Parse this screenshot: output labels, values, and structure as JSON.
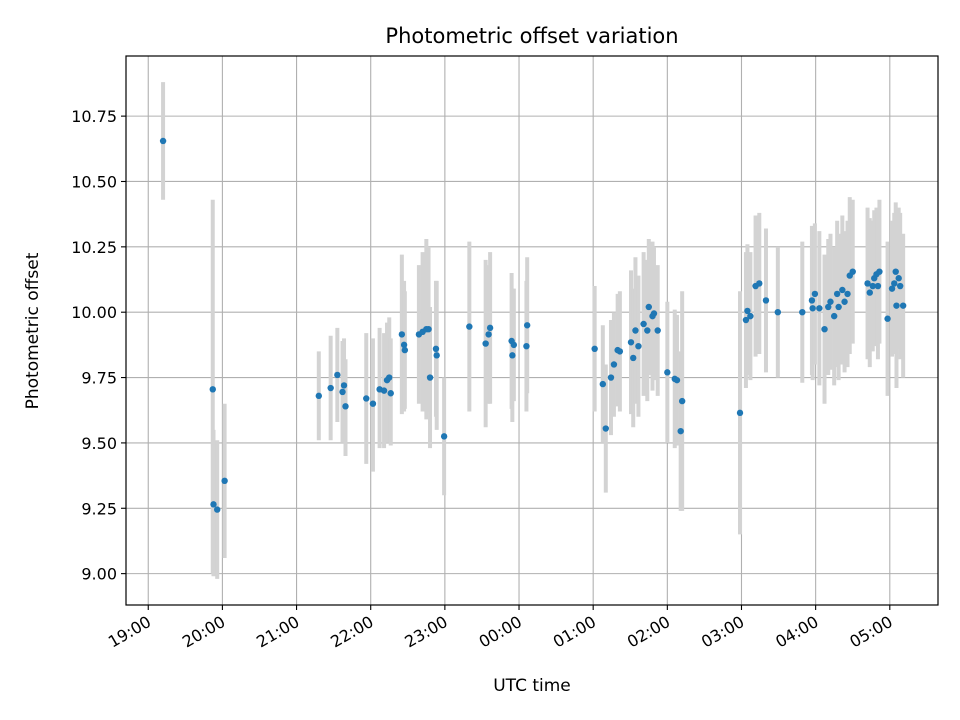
{
  "chart_data": {
    "type": "scatter",
    "title": "Photometric offset variation",
    "xlabel": "UTC time",
    "ylabel": "Photometric offset",
    "x_unit": "UTC hours (19 = 19:00, 29 = 05:00 next day)",
    "xlim": [
      18.7,
      29.65
    ],
    "ylim": [
      8.88,
      10.98
    ],
    "grid": true,
    "x_ticks": [
      {
        "value": 19,
        "label": "19:00"
      },
      {
        "value": 20,
        "label": "20:00"
      },
      {
        "value": 21,
        "label": "21:00"
      },
      {
        "value": 22,
        "label": "22:00"
      },
      {
        "value": 23,
        "label": "23:00"
      },
      {
        "value": 24,
        "label": "00:00"
      },
      {
        "value": 25,
        "label": "01:00"
      },
      {
        "value": 26,
        "label": "02:00"
      },
      {
        "value": 27,
        "label": "03:00"
      },
      {
        "value": 28,
        "label": "04:00"
      },
      {
        "value": 29,
        "label": "05:00"
      }
    ],
    "y_ticks": [
      {
        "value": 9.0,
        "label": "9.00"
      },
      {
        "value": 9.25,
        "label": "9.25"
      },
      {
        "value": 9.5,
        "label": "9.50"
      },
      {
        "value": 9.75,
        "label": "9.75"
      },
      {
        "value": 10.0,
        "label": "10.00"
      },
      {
        "value": 10.25,
        "label": "10.25"
      },
      {
        "value": 10.5,
        "label": "10.50"
      },
      {
        "value": 10.75,
        "label": "10.75"
      }
    ],
    "marker_color": "#1f77b4",
    "errorbar_color": "#d3d3d3",
    "points": [
      {
        "x": 19.2,
        "y": 10.655,
        "lo": 10.43,
        "hi": 10.88
      },
      {
        "x": 19.87,
        "y": 9.705,
        "lo": 9.0,
        "hi": 10.43
      },
      {
        "x": 19.88,
        "y": 9.265,
        "lo": 8.99,
        "hi": 9.55
      },
      {
        "x": 19.93,
        "y": 9.245,
        "lo": 8.98,
        "hi": 9.51
      },
      {
        "x": 20.03,
        "y": 9.355,
        "lo": 9.06,
        "hi": 9.65
      },
      {
        "x": 21.3,
        "y": 9.68,
        "lo": 9.51,
        "hi": 9.85
      },
      {
        "x": 21.46,
        "y": 9.71,
        "lo": 9.51,
        "hi": 9.91
      },
      {
        "x": 21.55,
        "y": 9.76,
        "lo": 9.58,
        "hi": 9.94
      },
      {
        "x": 21.62,
        "y": 9.695,
        "lo": 9.5,
        "hi": 9.89
      },
      {
        "x": 21.64,
        "y": 9.72,
        "lo": 9.54,
        "hi": 9.9
      },
      {
        "x": 21.66,
        "y": 9.64,
        "lo": 9.45,
        "hi": 9.82
      },
      {
        "x": 21.94,
        "y": 9.67,
        "lo": 9.42,
        "hi": 9.92
      },
      {
        "x": 22.03,
        "y": 9.65,
        "lo": 9.39,
        "hi": 9.9
      },
      {
        "x": 22.12,
        "y": 9.705,
        "lo": 9.48,
        "hi": 9.94
      },
      {
        "x": 22.18,
        "y": 9.7,
        "lo": 9.48,
        "hi": 9.92
      },
      {
        "x": 22.22,
        "y": 9.74,
        "lo": 9.5,
        "hi": 9.96
      },
      {
        "x": 22.25,
        "y": 9.75,
        "lo": 9.52,
        "hi": 9.98
      },
      {
        "x": 22.27,
        "y": 9.69,
        "lo": 9.49,
        "hi": 9.9
      },
      {
        "x": 22.42,
        "y": 9.915,
        "lo": 9.61,
        "hi": 10.22
      },
      {
        "x": 22.45,
        "y": 9.875,
        "lo": 9.62,
        "hi": 10.12
      },
      {
        "x": 22.46,
        "y": 9.855,
        "lo": 9.63,
        "hi": 10.08
      },
      {
        "x": 22.65,
        "y": 9.915,
        "lo": 9.65,
        "hi": 10.18
      },
      {
        "x": 22.7,
        "y": 9.925,
        "lo": 9.62,
        "hi": 10.23
      },
      {
        "x": 22.75,
        "y": 9.935,
        "lo": 9.59,
        "hi": 10.28
      },
      {
        "x": 22.78,
        "y": 9.935,
        "lo": 9.62,
        "hi": 10.25
      },
      {
        "x": 22.8,
        "y": 9.75,
        "lo": 9.48,
        "hi": 10.02
      },
      {
        "x": 22.88,
        "y": 9.86,
        "lo": 9.6,
        "hi": 10.12
      },
      {
        "x": 22.89,
        "y": 9.835,
        "lo": 9.55,
        "hi": 10.12
      },
      {
        "x": 22.99,
        "y": 9.525,
        "lo": 9.3,
        "hi": 9.75
      },
      {
        "x": 23.33,
        "y": 9.945,
        "lo": 9.62,
        "hi": 10.27
      },
      {
        "x": 23.55,
        "y": 9.88,
        "lo": 9.56,
        "hi": 10.2
      },
      {
        "x": 23.59,
        "y": 9.915,
        "lo": 9.65,
        "hi": 10.18
      },
      {
        "x": 23.61,
        "y": 9.94,
        "lo": 9.65,
        "hi": 10.23
      },
      {
        "x": 23.9,
        "y": 9.89,
        "lo": 9.63,
        "hi": 10.15
      },
      {
        "x": 23.91,
        "y": 9.835,
        "lo": 9.58,
        "hi": 10.09
      },
      {
        "x": 23.93,
        "y": 9.875,
        "lo": 9.66,
        "hi": 10.09
      },
      {
        "x": 24.1,
        "y": 9.87,
        "lo": 9.62,
        "hi": 10.12
      },
      {
        "x": 24.11,
        "y": 9.95,
        "lo": 9.69,
        "hi": 10.21
      },
      {
        "x": 25.02,
        "y": 9.86,
        "lo": 9.62,
        "hi": 10.1
      },
      {
        "x": 25.13,
        "y": 9.725,
        "lo": 9.5,
        "hi": 9.95
      },
      {
        "x": 25.17,
        "y": 9.555,
        "lo": 9.31,
        "hi": 9.8
      },
      {
        "x": 25.24,
        "y": 9.75,
        "lo": 9.53,
        "hi": 9.97
      },
      {
        "x": 25.28,
        "y": 9.8,
        "lo": 9.6,
        "hi": 10.0
      },
      {
        "x": 25.33,
        "y": 9.855,
        "lo": 9.64,
        "hi": 10.07
      },
      {
        "x": 25.36,
        "y": 9.85,
        "lo": 9.62,
        "hi": 10.08
      },
      {
        "x": 25.51,
        "y": 9.885,
        "lo": 9.61,
        "hi": 10.16
      },
      {
        "x": 25.54,
        "y": 9.825,
        "lo": 9.56,
        "hi": 10.09
      },
      {
        "x": 25.57,
        "y": 9.93,
        "lo": 9.65,
        "hi": 10.21
      },
      {
        "x": 25.61,
        "y": 9.87,
        "lo": 9.6,
        "hi": 10.14
      },
      {
        "x": 25.68,
        "y": 9.955,
        "lo": 9.68,
        "hi": 10.23
      },
      {
        "x": 25.73,
        "y": 9.93,
        "lo": 9.66,
        "hi": 10.2
      },
      {
        "x": 25.75,
        "y": 10.02,
        "lo": 9.76,
        "hi": 10.28
      },
      {
        "x": 25.8,
        "y": 9.985,
        "lo": 9.7,
        "hi": 10.27
      },
      {
        "x": 25.82,
        "y": 9.995,
        "lo": 9.74,
        "hi": 10.25
      },
      {
        "x": 25.87,
        "y": 9.93,
        "lo": 9.68,
        "hi": 10.18
      },
      {
        "x": 26.0,
        "y": 9.77,
        "lo": 9.5,
        "hi": 10.04
      },
      {
        "x": 26.1,
        "y": 9.745,
        "lo": 9.48,
        "hi": 10.01
      },
      {
        "x": 26.13,
        "y": 9.74,
        "lo": 9.49,
        "hi": 9.99
      },
      {
        "x": 26.18,
        "y": 9.545,
        "lo": 9.24,
        "hi": 9.85
      },
      {
        "x": 26.2,
        "y": 9.66,
        "lo": 9.24,
        "hi": 10.08
      },
      {
        "x": 26.98,
        "y": 9.615,
        "lo": 9.15,
        "hi": 10.08
      },
      {
        "x": 27.06,
        "y": 9.97,
        "lo": 9.71,
        "hi": 10.23
      },
      {
        "x": 27.08,
        "y": 10.005,
        "lo": 9.76,
        "hi": 10.26
      },
      {
        "x": 27.12,
        "y": 9.985,
        "lo": 9.74,
        "hi": 10.23
      },
      {
        "x": 27.19,
        "y": 10.1,
        "lo": 9.83,
        "hi": 10.37
      },
      {
        "x": 27.24,
        "y": 10.11,
        "lo": 9.84,
        "hi": 10.38
      },
      {
        "x": 27.33,
        "y": 10.045,
        "lo": 9.77,
        "hi": 10.32
      },
      {
        "x": 27.49,
        "y": 10.0,
        "lo": 9.75,
        "hi": 10.25
      },
      {
        "x": 27.82,
        "y": 10.0,
        "lo": 9.73,
        "hi": 10.27
      },
      {
        "x": 27.95,
        "y": 10.045,
        "lo": 9.76,
        "hi": 10.33
      },
      {
        "x": 27.96,
        "y": 10.015,
        "lo": 9.74,
        "hi": 10.29
      },
      {
        "x": 27.99,
        "y": 10.07,
        "lo": 9.8,
        "hi": 10.34
      },
      {
        "x": 28.05,
        "y": 10.015,
        "lo": 9.72,
        "hi": 10.31
      },
      {
        "x": 28.12,
        "y": 9.935,
        "lo": 9.65,
        "hi": 10.22
      },
      {
        "x": 28.17,
        "y": 10.02,
        "lo": 9.76,
        "hi": 10.28
      },
      {
        "x": 28.2,
        "y": 10.04,
        "lo": 9.78,
        "hi": 10.3
      },
      {
        "x": 28.25,
        "y": 9.985,
        "lo": 9.72,
        "hi": 10.25
      },
      {
        "x": 28.29,
        "y": 10.07,
        "lo": 9.79,
        "hi": 10.35
      },
      {
        "x": 28.31,
        "y": 10.02,
        "lo": 9.74,
        "hi": 10.3
      },
      {
        "x": 28.36,
        "y": 10.085,
        "lo": 9.8,
        "hi": 10.37
      },
      {
        "x": 28.39,
        "y": 10.04,
        "lo": 9.77,
        "hi": 10.31
      },
      {
        "x": 28.43,
        "y": 10.07,
        "lo": 9.79,
        "hi": 10.35
      },
      {
        "x": 28.46,
        "y": 10.14,
        "lo": 9.84,
        "hi": 10.44
      },
      {
        "x": 28.5,
        "y": 10.155,
        "lo": 9.88,
        "hi": 10.43
      },
      {
        "x": 28.7,
        "y": 10.11,
        "lo": 9.82,
        "hi": 10.4
      },
      {
        "x": 28.73,
        "y": 10.075,
        "lo": 9.79,
        "hi": 10.36
      },
      {
        "x": 28.77,
        "y": 10.1,
        "lo": 9.85,
        "hi": 10.35
      },
      {
        "x": 28.79,
        "y": 10.13,
        "lo": 9.87,
        "hi": 10.39
      },
      {
        "x": 28.82,
        "y": 10.145,
        "lo": 9.89,
        "hi": 10.4
      },
      {
        "x": 28.84,
        "y": 10.1,
        "lo": 9.82,
        "hi": 10.38
      },
      {
        "x": 28.86,
        "y": 10.155,
        "lo": 9.88,
        "hi": 10.43
      },
      {
        "x": 28.97,
        "y": 9.975,
        "lo": 9.68,
        "hi": 10.27
      },
      {
        "x": 29.03,
        "y": 10.09,
        "lo": 9.83,
        "hi": 10.35
      },
      {
        "x": 29.06,
        "y": 10.11,
        "lo": 9.84,
        "hi": 10.38
      },
      {
        "x": 29.08,
        "y": 10.155,
        "lo": 9.89,
        "hi": 10.42
      },
      {
        "x": 29.09,
        "y": 10.025,
        "lo": 9.71,
        "hi": 10.34
      },
      {
        "x": 29.12,
        "y": 10.13,
        "lo": 9.86,
        "hi": 10.4
      },
      {
        "x": 29.14,
        "y": 10.1,
        "lo": 9.82,
        "hi": 10.38
      },
      {
        "x": 29.18,
        "y": 10.025,
        "lo": 9.75,
        "hi": 10.3
      }
    ]
  }
}
